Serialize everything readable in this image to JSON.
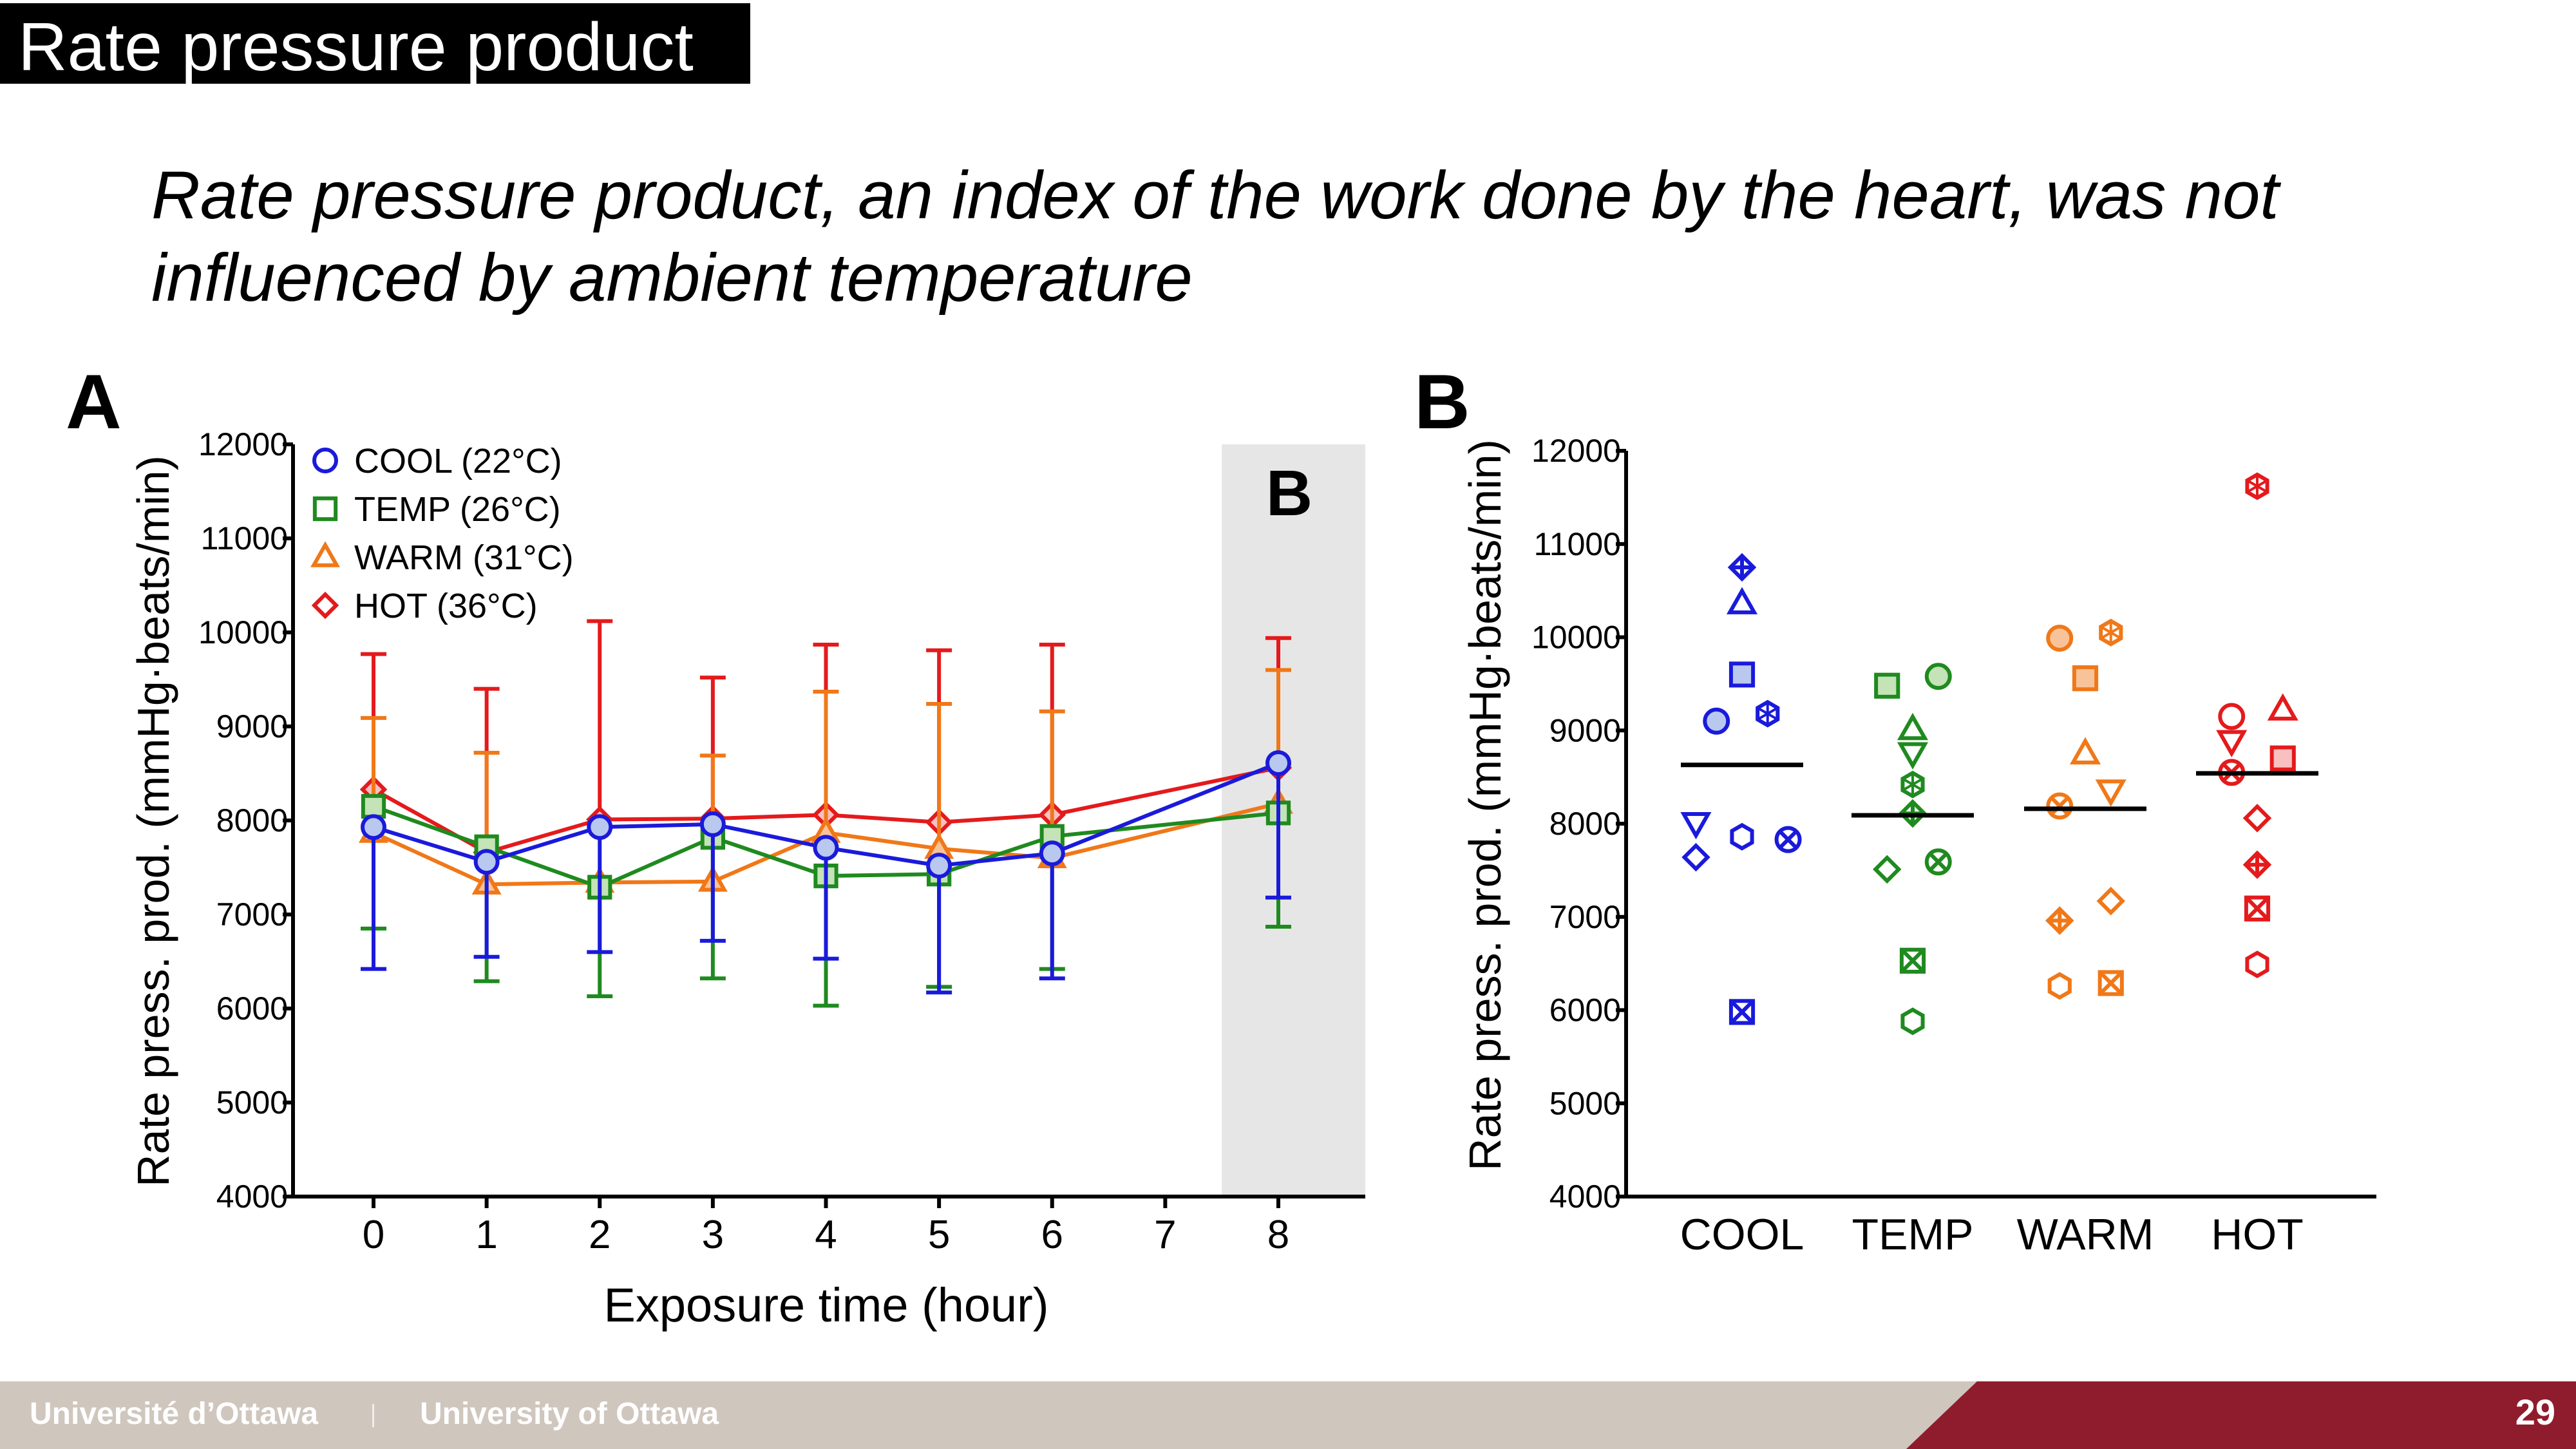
{
  "slide": {
    "title": "Rate pressure product",
    "subtitle": "Rate pressure product, an index of the work done by the heart, was not influenced by ambient temperature",
    "page_number": "29",
    "footer_fr": "Université d’Ottawa",
    "footer_en": "University of Ottawa",
    "panel_a_letter": "A",
    "panel_b_letter": "B"
  },
  "colors": {
    "COOL": "#1a1adb",
    "TEMP": "#1f8a1f",
    "WARM": "#f07818",
    "HOT": "#e41a1c",
    "COOL_fill": "#b9c8ee",
    "TEMP_fill": "#c4e3b6",
    "WARM_fill": "#f9c39a",
    "HOT_fill": "#f9c0c0"
  },
  "chart_data": [
    {
      "type": "line",
      "xlabel": "Exposure time (hour)",
      "ylabel": "Rate press. prod. (mmHg·beats/min)",
      "ylim": [
        4000,
        12000
      ],
      "xlim": [
        -0.5,
        8.8
      ],
      "x": [
        0,
        1,
        2,
        3,
        4,
        5,
        6,
        8
      ],
      "x_ticks": [
        "0",
        "1",
        "2",
        "3",
        "4",
        "5",
        "6",
        "7",
        "8"
      ],
      "y_ticks": [
        "4000",
        "5000",
        "6000",
        "7000",
        "8000",
        "9000",
        "10000",
        "11000",
        "12000"
      ],
      "highlight_label": "B",
      "highlight_x_range": [
        7.5,
        8.8
      ],
      "legend_position": "top-left",
      "series": [
        {
          "name": "COOL (22°C)",
          "key": "COOL",
          "marker": "circle",
          "values": [
            7930,
            7560,
            7930,
            7960,
            7710,
            7520,
            7650,
            8610
          ],
          "err_up": [
            null,
            null,
            null,
            null,
            null,
            null,
            null,
            null
          ],
          "err_down": [
            6420,
            6550,
            6600,
            6720,
            6530,
            6170,
            6320,
            7180
          ]
        },
        {
          "name": "TEMP (26°C)",
          "key": "TEMP",
          "marker": "square",
          "values": [
            8150,
            7720,
            7290,
            7820,
            7410,
            7430,
            7830,
            8080
          ],
          "err_up": [
            null,
            null,
            null,
            null,
            null,
            null,
            null,
            null
          ],
          "err_down": [
            6850,
            6290,
            6130,
            6320,
            6030,
            6230,
            6420,
            6870
          ]
        },
        {
          "name": "WARM (31°C)",
          "key": "WARM",
          "marker": "triangle",
          "values": [
            7870,
            7320,
            7340,
            7350,
            7870,
            7700,
            7600,
            8180
          ],
          "err_up": [
            9090,
            8720,
            null,
            8690,
            9370,
            9240,
            9160,
            9600
          ],
          "err_down": [
            null,
            null,
            null,
            null,
            null,
            null,
            null,
            null
          ]
        },
        {
          "name": "HOT (36°C)",
          "key": "HOT",
          "marker": "diamond",
          "values": [
            8330,
            7660,
            8010,
            8020,
            8060,
            7980,
            8060,
            8560
          ],
          "err_up": [
            9770,
            9400,
            10120,
            9520,
            9870,
            9810,
            9870,
            9940
          ],
          "err_down": [
            null,
            null,
            null,
            null,
            null,
            null,
            null,
            null
          ]
        }
      ]
    },
    {
      "type": "scatter",
      "ylabel": "Rate press. prod. (mmHg·beats/min)",
      "ylim": [
        4000,
        12000
      ],
      "categories": [
        "COOL",
        "TEMP",
        "WARM",
        "HOT"
      ],
      "y_ticks": [
        "4000",
        "5000",
        "6000",
        "7000",
        "8000",
        "9000",
        "10000",
        "11000",
        "12000"
      ],
      "means": [
        8630,
        8090,
        8160,
        8540
      ],
      "series": [
        {
          "key": "COOL",
          "points": [
            {
              "dx": 0,
              "y": 10750,
              "m": "diamond-plus"
            },
            {
              "dx": 0,
              "y": 10360,
              "m": "triangle"
            },
            {
              "dx": 0,
              "y": 9600,
              "m": "square-filled"
            },
            {
              "dx": -0.15,
              "y": 9100,
              "m": "circle-filled"
            },
            {
              "dx": 0.15,
              "y": 9180,
              "m": "hexagon-star"
            },
            {
              "dx": -0.27,
              "y": 8010,
              "m": "triangle-down"
            },
            {
              "dx": -0.27,
              "y": 7640,
              "m": "diamond"
            },
            {
              "dx": 0,
              "y": 7860,
              "m": "hexagon"
            },
            {
              "dx": 0.27,
              "y": 7830,
              "m": "circle-x"
            },
            {
              "dx": 0,
              "y": 5980,
              "m": "square-x"
            }
          ]
        },
        {
          "key": "TEMP",
          "points": [
            {
              "dx": -0.15,
              "y": 9480,
              "m": "square-filled"
            },
            {
              "dx": 0.15,
              "y": 9580,
              "m": "circle-filled"
            },
            {
              "dx": 0,
              "y": 9010,
              "m": "triangle"
            },
            {
              "dx": 0,
              "y": 8760,
              "m": "triangle-down"
            },
            {
              "dx": 0,
              "y": 8420,
              "m": "hexagon-star"
            },
            {
              "dx": 0,
              "y": 8110,
              "m": "diamond-plus"
            },
            {
              "dx": -0.15,
              "y": 7510,
              "m": "diamond"
            },
            {
              "dx": 0.15,
              "y": 7590,
              "m": "circle-x"
            },
            {
              "dx": 0,
              "y": 6530,
              "m": "square-x"
            },
            {
              "dx": 0,
              "y": 5880,
              "m": "hexagon"
            }
          ]
        },
        {
          "key": "WARM",
          "points": [
            {
              "dx": -0.15,
              "y": 9990,
              "m": "circle-filled"
            },
            {
              "dx": 0.15,
              "y": 10050,
              "m": "hexagon-star"
            },
            {
              "dx": 0,
              "y": 9560,
              "m": "square-filled"
            },
            {
              "dx": 0,
              "y": 8750,
              "m": "triangle"
            },
            {
              "dx": 0.15,
              "y": 8360,
              "m": "triangle-down"
            },
            {
              "dx": -0.15,
              "y": 8190,
              "m": "circle-x"
            },
            {
              "dx": -0.15,
              "y": 6960,
              "m": "diamond-plus"
            },
            {
              "dx": 0.15,
              "y": 7170,
              "m": "diamond"
            },
            {
              "dx": -0.15,
              "y": 6260,
              "m": "hexagon"
            },
            {
              "dx": 0.15,
              "y": 6290,
              "m": "square-x"
            }
          ]
        },
        {
          "key": "HOT",
          "points": [
            {
              "dx": 0,
              "y": 11620,
              "m": "hexagon-star"
            },
            {
              "dx": 0.15,
              "y": 9220,
              "m": "triangle"
            },
            {
              "dx": -0.15,
              "y": 9150,
              "m": "circle"
            },
            {
              "dx": -0.15,
              "y": 8890,
              "m": "triangle-down"
            },
            {
              "dx": 0.15,
              "y": 8700,
              "m": "square-filled"
            },
            {
              "dx": -0.15,
              "y": 8550,
              "m": "circle-x"
            },
            {
              "dx": 0,
              "y": 8060,
              "m": "diamond"
            },
            {
              "dx": 0,
              "y": 7560,
              "m": "diamond-plus"
            },
            {
              "dx": 0,
              "y": 7090,
              "m": "square-x"
            },
            {
              "dx": 0,
              "y": 6490,
              "m": "hexagon"
            }
          ]
        }
      ]
    }
  ]
}
